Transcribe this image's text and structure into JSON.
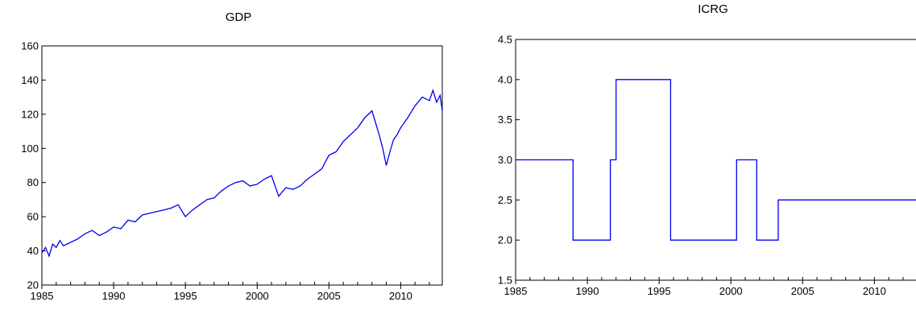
{
  "chart_data": [
    {
      "type": "line",
      "title": "GDP",
      "xlabel": "",
      "ylabel": "",
      "xlim": [
        1985.0,
        2012.9
      ],
      "ylim": [
        20,
        160
      ],
      "x_ticks": [
        1985,
        1990,
        1995,
        2000,
        2005,
        2010
      ],
      "y_ticks": [
        20,
        40,
        60,
        80,
        100,
        120,
        140,
        160
      ],
      "y_tick_labels": [
        "20",
        "40",
        "60",
        "80",
        "100",
        "120",
        "140",
        "160"
      ],
      "minor_x_ticks_per_year": true,
      "grid": false,
      "legend": "none",
      "line_color": "#0000ee",
      "series": [
        {
          "x": [
            1985.0,
            1985.25,
            1985.5,
            1985.75,
            1986.0,
            1986.25,
            1986.5,
            1986.75,
            1987.0,
            1987.5,
            1988.0,
            1988.5,
            1989.0,
            1989.5,
            1990.0,
            1990.5,
            1991.0,
            1991.5,
            1992.0,
            1992.5,
            1993.0,
            1993.5,
            1994.0,
            1994.5,
            1995.0,
            1995.5,
            1996.0,
            1996.5,
            1997.0,
            1997.5,
            1998.0,
            1998.5,
            1999.0,
            1999.5,
            2000.0,
            2000.5,
            2001.0,
            2001.5,
            2002.0,
            2002.5,
            2003.0,
            2003.5,
            2004.0,
            2004.5,
            2005.0,
            2005.5,
            2006.0,
            2006.5,
            2007.0,
            2007.5,
            2008.0,
            2008.25,
            2008.5,
            2008.75,
            2009.0,
            2009.25,
            2009.5,
            2009.75,
            2010.0,
            2010.5,
            2011.0,
            2011.5,
            2012.0,
            2012.25,
            2012.5,
            2012.75,
            2012.9
          ],
          "values": [
            39,
            42,
            37,
            44,
            42,
            46,
            43,
            44,
            45,
            47,
            50,
            52,
            49,
            51,
            54,
            53,
            58,
            57,
            61,
            62,
            63,
            64,
            65,
            67,
            60,
            64,
            67,
            70,
            71,
            75,
            78,
            80,
            81,
            78,
            79,
            82,
            84,
            72,
            77,
            76,
            78,
            82,
            85,
            88,
            96,
            98,
            104,
            108,
            112,
            118,
            122,
            115,
            108,
            100,
            90,
            98,
            105,
            108,
            112,
            118,
            125,
            130,
            128,
            134,
            127,
            131,
            122
          ]
        }
      ]
    },
    {
      "type": "line",
      "title": "ICRG",
      "xlabel": "",
      "ylabel": "",
      "xlim": [
        1985.0,
        2012.9
      ],
      "ylim": [
        1.5,
        4.5
      ],
      "x_ticks": [
        1985,
        1990,
        1995,
        2000,
        2005,
        2010
      ],
      "y_ticks": [
        1.5,
        2.0,
        2.5,
        3.0,
        3.5,
        4.0,
        4.5
      ],
      "y_tick_labels": [
        "1.5",
        "2.0",
        "2.5",
        "3.0",
        "3.5",
        "4.0",
        "4.5"
      ],
      "minor_x_ticks_per_year": true,
      "grid": false,
      "legend": "none",
      "line_color": "#0000ee",
      "series": [
        {
          "x": [
            1985.0,
            1989.0,
            1989.0,
            1991.6,
            1991.6,
            1992.0,
            1992.0,
            1995.8,
            1995.8,
            2000.4,
            2000.4,
            2001.8,
            2001.8,
            2003.3,
            2003.3,
            2012.9
          ],
          "values": [
            3.0,
            3.0,
            2.0,
            2.0,
            3.0,
            3.0,
            4.0,
            4.0,
            2.0,
            2.0,
            3.0,
            3.0,
            2.0,
            2.0,
            2.5,
            2.5
          ]
        }
      ]
    }
  ]
}
